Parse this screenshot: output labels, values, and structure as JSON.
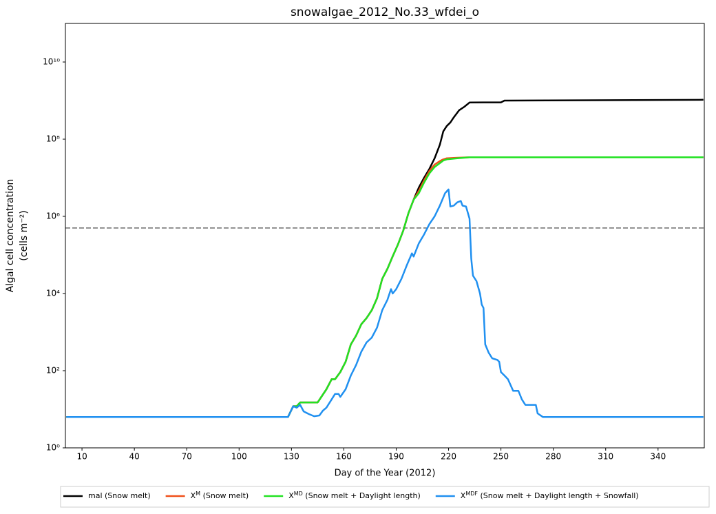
{
  "chart_data": {
    "type": "line",
    "title": "snowalgae_2012_No.33_wfdei_o",
    "xlabel": "Day of the Year (2012)",
    "ylabel": [
      "Algal cell concentration",
      "(cells m⁻²)"
    ],
    "yscale": "log",
    "xlim": [
      0.5,
      366.5
    ],
    "ylim": [
      1,
      100000000000
    ],
    "xticks": [
      10,
      40,
      70,
      100,
      130,
      160,
      190,
      220,
      250,
      280,
      310,
      340
    ],
    "yticks": [
      {
        "value": 1,
        "label": "10⁰"
      },
      {
        "value": 100,
        "label": "10²"
      },
      {
        "value": 10000,
        "label": "10⁴"
      },
      {
        "value": 1000000,
        "label": "10⁶"
      },
      {
        "value": 100000000,
        "label": "10⁸"
      },
      {
        "value": 10000000000,
        "label": "10¹⁰"
      }
    ],
    "threshold": 500000,
    "threshold_color": "#808080",
    "series": [
      {
        "name": "mal (Snow melt)",
        "color": "#000000",
        "x": [
          1,
          128,
          131,
          133,
          135,
          145,
          150,
          153,
          155,
          158,
          161,
          164,
          167,
          170,
          173,
          176,
          179,
          182,
          185,
          188,
          191,
          194,
          197,
          200,
          203,
          206,
          209,
          212,
          215,
          217,
          219,
          221,
          223,
          226,
          229,
          232,
          240,
          250,
          252,
          366
        ],
        "values": [
          6.3,
          6.3,
          12,
          12,
          15,
          15,
          33,
          60,
          60,
          92,
          170,
          480,
          810,
          1600,
          2300,
          3700,
          7500,
          24000,
          44000,
          92000,
          186000,
          420000,
          1200000,
          2700000,
          5600000,
          10000000,
          17000000,
          32000000,
          72000000,
          160000000,
          220000000,
          270000000,
          370000000,
          560000000,
          690000000,
          890000000,
          900000000,
          900000000,
          1000000000,
          1050000000
        ]
      },
      {
        "name": "XM (Snow melt)",
        "color": "#f0501a",
        "x": [
          1,
          128,
          131,
          133,
          135,
          145,
          150,
          153,
          155,
          158,
          161,
          164,
          167,
          170,
          173,
          176,
          179,
          182,
          185,
          188,
          191,
          194,
          197,
          200,
          203,
          206,
          209,
          212,
          215,
          217,
          219,
          225,
          232,
          366
        ],
        "values": [
          6.3,
          6.3,
          12,
          12,
          15,
          15,
          33,
          60,
          60,
          92,
          170,
          480,
          810,
          1600,
          2300,
          3700,
          7500,
          24000,
          44000,
          92000,
          186000,
          420000,
          1200000,
          2700000,
          4600000,
          8600000,
          15000000,
          22000000,
          27000000,
          30000000,
          32000000,
          33000000,
          34000000,
          34000000
        ]
      },
      {
        "name": "XMD (Snow melt + Daylight length)",
        "color": "#22e222",
        "x": [
          1,
          128,
          131,
          133,
          135,
          145,
          150,
          153,
          155,
          158,
          161,
          164,
          167,
          170,
          173,
          176,
          179,
          182,
          185,
          188,
          191,
          194,
          197,
          200,
          203,
          206,
          209,
          212,
          215,
          217,
          219,
          225,
          232,
          366
        ],
        "values": [
          6.3,
          6.3,
          12,
          12,
          15,
          15,
          33,
          60,
          60,
          92,
          170,
          480,
          810,
          1600,
          2300,
          3700,
          7500,
          24000,
          44000,
          92000,
          186000,
          420000,
          1200000,
          2700000,
          4000000,
          7500000,
          13000000,
          19000000,
          24000000,
          28000000,
          30000000,
          32000000,
          34000000,
          34000000
        ]
      },
      {
        "name": "XMDF (Snow melt + Daylight length + Snowfall)",
        "color": "#2090f0",
        "x": [
          1,
          128,
          131,
          133,
          135,
          137,
          140,
          143,
          146,
          148,
          150,
          153,
          155,
          157,
          158,
          161,
          164,
          167,
          170,
          173,
          176,
          179,
          182,
          185,
          187,
          188,
          190,
          193,
          196,
          199,
          200,
          203,
          206,
          209,
          212,
          215,
          218,
          220,
          221,
          223,
          225,
          227,
          228,
          230,
          232,
          233,
          234,
          236,
          238,
          239,
          240,
          241,
          243,
          245,
          248,
          249,
          250,
          252,
          254,
          257,
          260,
          262,
          264,
          270,
          271,
          274,
          366
        ],
        "values": [
          6.3,
          6.3,
          12,
          11,
          13,
          8.8,
          7.5,
          6.6,
          6.9,
          9.2,
          11,
          18,
          25,
          25,
          21,
          33,
          75,
          140,
          310,
          540,
          720,
          1300,
          3700,
          6900,
          13000,
          10000,
          13000,
          24000,
          53000,
          110000,
          91000,
          200000,
          340000,
          630000,
          1000000,
          1900000,
          4000000,
          5000000,
          1800000,
          1900000,
          2300000,
          2500000,
          1900000,
          1800000,
          870000,
          80000,
          29000,
          21000,
          10000,
          5200,
          4200,
          480,
          290,
          210,
          190,
          170,
          92,
          75,
          60,
          30,
          30,
          18,
          13,
          13,
          7.8,
          6.3,
          6.3
        ]
      }
    ]
  }
}
